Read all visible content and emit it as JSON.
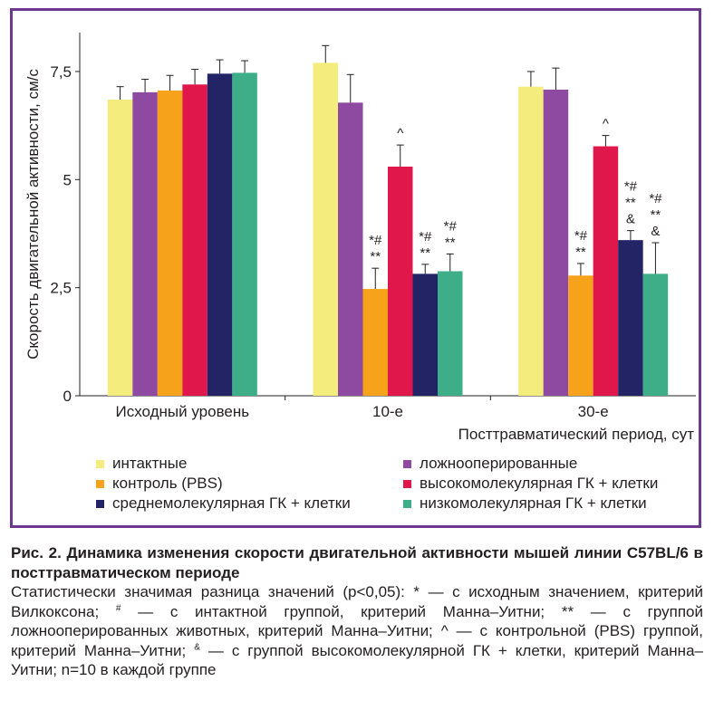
{
  "chart_data": {
    "type": "bar",
    "categories": [
      "Исходный уровень",
      "10-е",
      "30-е"
    ],
    "ylabel": "Скорость двигательной активности, см/с",
    "xlabel": "Посттравматический период, сут",
    "ylim": [
      0,
      8.4
    ],
    "yticks": [
      "0",
      "2,5",
      "5",
      "7,5"
    ],
    "ytick_values": [
      0,
      2.5,
      5,
      7.5
    ],
    "grid": false,
    "legend_position": "bottom",
    "series": [
      {
        "name": "интактные",
        "color": "#f4ec7d",
        "values": [
          6.85,
          7.7,
          7.15
        ],
        "errors": [
          0.3,
          0.4,
          0.35
        ],
        "annotations": [
          "",
          "",
          ""
        ]
      },
      {
        "name": "ложнооперированные",
        "color": "#8e4aa0",
        "values": [
          7.02,
          6.78,
          7.08
        ],
        "errors": [
          0.3,
          0.65,
          0.5
        ],
        "annotations": [
          "",
          "",
          ""
        ]
      },
      {
        "name": "контроль (PBS)",
        "color": "#f7a21b",
        "values": [
          7.06,
          2.47,
          2.78
        ],
        "errors": [
          0.35,
          0.48,
          0.28
        ],
        "annotations": [
          "",
          "*#\n**",
          "*#\n**"
        ]
      },
      {
        "name": "высокомолекулярная ГК + клетки",
        "color": "#e0174a",
        "values": [
          7.2,
          5.3,
          5.77
        ],
        "errors": [
          0.35,
          0.5,
          0.25
        ],
        "annotations": [
          "",
          "^",
          "^"
        ]
      },
      {
        "name": "среднемолекулярная ГК + клетки",
        "color": "#232466",
        "values": [
          7.45,
          2.82,
          3.6
        ],
        "errors": [
          0.32,
          0.22,
          0.22
        ],
        "annotations": [
          "",
          "*#\n**",
          "*#\n**\n&"
        ]
      },
      {
        "name": "низкомолекулярная ГК + клетки",
        "color": "#3dae87",
        "values": [
          7.47,
          2.88,
          2.82
        ],
        "errors": [
          0.28,
          0.4,
          0.72
        ],
        "annotations": [
          "",
          "*#\n**",
          "*#\n**\n&"
        ]
      }
    ]
  },
  "caption": {
    "title": "Рис. 2. Динамика изменения скорости двигательной активности мышей линии С57BL/6 в посттравматическом периоде",
    "line1": "Статистически значимая разница значений (р<0,05): * — с исходным значением, критерий Вилкоксона;",
    "sup1": "#",
    "line2": " — с интактной группой, критерий Манна–Уитни; ** — с группой ложнооперированных животных, критерий Манна–Уитни; ^ — с контрольной (PBS) группой, критерий Манна–Уитни;",
    "sup2": "&",
    "line3": " — с группой высокомолекулярной ГК + клетки, критерий Манна–Уитни; n=10 в каждой группе"
  }
}
